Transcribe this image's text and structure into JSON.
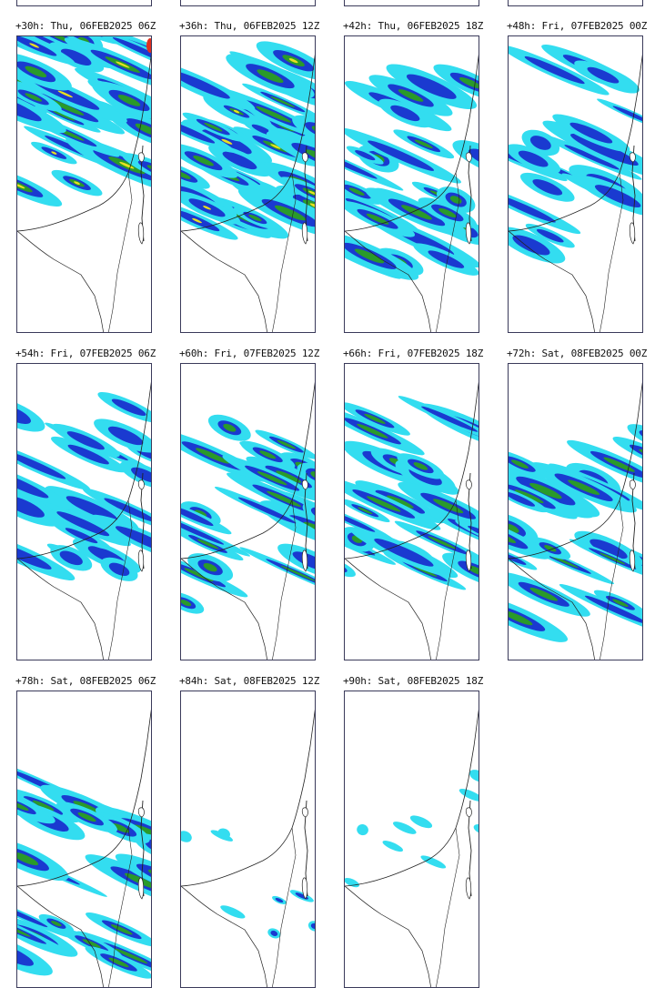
{
  "panels": [
    {
      "label": "+30h: Thu, 06FEB2025 06Z",
      "intensity": "heavy"
    },
    {
      "label": "+36h: Thu, 06FEB2025 12Z",
      "intensity": "heavy"
    },
    {
      "label": "+42h: Thu, 06FEB2025 18Z",
      "intensity": "moderate"
    },
    {
      "label": "+48h: Fri, 07FEB2025 00Z",
      "intensity": "light"
    },
    {
      "label": "+54h: Fri, 07FEB2025 06Z",
      "intensity": "light"
    },
    {
      "label": "+60h: Fri, 07FEB2025 12Z",
      "intensity": "moderate"
    },
    {
      "label": "+66h: Fri, 07FEB2025 18Z",
      "intensity": "moderate"
    },
    {
      "label": "+72h: Sat, 08FEB2025 00Z",
      "intensity": "moderate"
    },
    {
      "label": "+78h: Sat, 08FEB2025 06Z",
      "intensity": "moderate"
    },
    {
      "label": "+84h: Sat, 08FEB2025 12Z",
      "intensity": "sparse"
    },
    {
      "label": "+90h: Sat, 08FEB2025 18Z",
      "intensity": "sparse"
    }
  ],
  "colors": {
    "light": "#33ddf0",
    "medium": "#1a3ad0",
    "moderate": "#2a9a2a",
    "heavy": "#e8e020",
    "extreme": "#e03020",
    "coast": "#222222"
  }
}
